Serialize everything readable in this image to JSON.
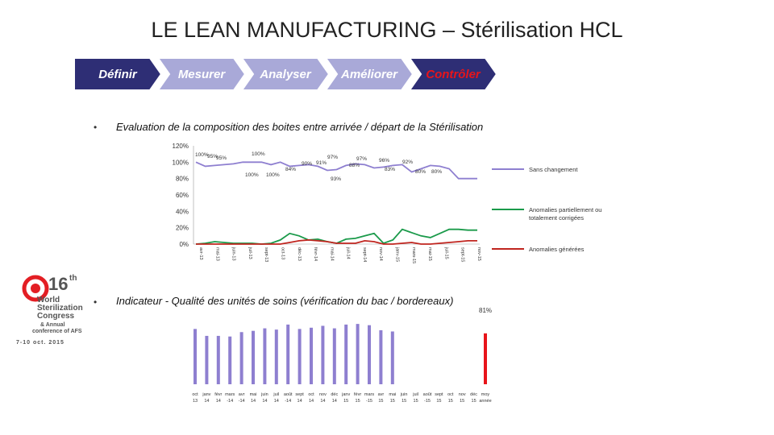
{
  "title": "LE LEAN MANUFACTURING – Stérilisation HCL",
  "steps": [
    "Définir",
    "Mesurer",
    "Analyser",
    "Améliorer",
    "Contrôler"
  ],
  "colors": {
    "step_dark": "#2e2e75",
    "step_light": "#a9a9d8",
    "red": "#e8141a",
    "purple": "#8e7fd0",
    "green": "#1a9a4a",
    "red_line": "#c0251f"
  },
  "section1": {
    "bullet": "•",
    "heading": "Evaluation de la composition des boites entre arrivée / départ de la Stérilisation"
  },
  "section2": {
    "bullet": "•",
    "heading": "Indicateur - Qualité des unités de soins (vérification du bac / bordereaux)"
  },
  "logo": {
    "number": "16",
    "suffix": "th",
    "lines": [
      "World",
      "Sterilization",
      "Congress"
    ],
    "sub": [
      "& Annual",
      "conference of AFS"
    ],
    "dates": "7-10 oct. 2015"
  },
  "chart_data": [
    {
      "type": "line",
      "y_ticks": [
        "120%",
        "100%",
        "80%",
        "60%",
        "40%",
        "20%",
        "0%"
      ],
      "ylim": [
        0,
        120
      ],
      "categories": [
        "avr-13",
        "mai-13",
        "juin-13",
        "juil-13",
        "aout-13",
        "sept-13",
        "oct-13",
        "nov-13",
        "dec-13",
        "janv-14",
        "fevr-14",
        "mars-14",
        "avr-14",
        "mai-14",
        "juin-14",
        "juil-14",
        "aout-14",
        "sept-14",
        "oct-14",
        "nov-14",
        "dec-14",
        "janv-15",
        "fevr-15",
        "mars-15",
        "avr-15",
        "mai-15",
        "juin-15",
        "juil-15",
        "aout-15",
        "sept-15",
        "oct-15"
      ],
      "x_labels": [
        "avr-13",
        "",
        "mai-13",
        "",
        "juin-13",
        "",
        "juil-13",
        "",
        "sept-13",
        "",
        "oct-13",
        "",
        "déc-13",
        "",
        "févr-14",
        "",
        "mai-14",
        "",
        "juil-14",
        "",
        "sept-14",
        "",
        "nov-14",
        "",
        "janv-15",
        "",
        "mars-15",
        "",
        "mai-15",
        "",
        "juil-15",
        "",
        "sept-15",
        "",
        "nov-15"
      ],
      "series": [
        {
          "name": "Sans changement",
          "color": "#8e7fd0",
          "values": [
            100,
            95,
            96,
            97,
            98,
            100,
            100,
            100,
            97,
            100,
            95,
            96,
            97,
            95,
            90,
            91,
            96,
            98,
            97,
            93,
            94,
            96,
            97,
            88,
            92,
            96,
            95,
            92,
            80,
            80,
            80
          ]
        },
        {
          "name": "Anomalies partiellement ou totalement corrigées",
          "color": "#1a9a4a",
          "values": [
            0,
            1,
            3,
            2,
            1,
            1,
            1,
            0,
            1,
            5,
            13,
            10,
            5,
            6,
            3,
            1,
            6,
            7,
            10,
            13,
            1,
            5,
            18,
            14,
            10,
            8,
            13,
            18,
            18,
            17,
            17
          ]
        },
        {
          "name": "Anomalies générées",
          "color": "#c0251f",
          "values": [
            0,
            0,
            0,
            0,
            0,
            0,
            0,
            0,
            0,
            0,
            2,
            4,
            5,
            4,
            3,
            1,
            1,
            1,
            4,
            3,
            0,
            0,
            1,
            2,
            0,
            0,
            1,
            2,
            3,
            4,
            4
          ]
        }
      ],
      "data_labels": [
        "100%",
        "95%",
        "95%",
        "100%",
        "100%",
        "100%",
        "84%",
        "90%",
        "91%",
        "97%",
        "93%",
        "88%",
        "97%",
        "96%",
        "83%",
        "92%",
        "80%",
        "80%"
      ]
    },
    {
      "type": "bar",
      "top_label": "81%",
      "categories": [
        "oct-13",
        "janv-14",
        "févr-14",
        "mars-14",
        "avr-14",
        "mai-14",
        "juin-14",
        "juil-14",
        "août-14",
        "sept-14",
        "oct-14",
        "nov-14",
        "déc-14",
        "janv-15",
        "févr-15",
        "mars-15",
        "avr-15",
        "mai-15",
        "juin-15",
        "juil-15",
        "août-15",
        "sept-15",
        "oct-15",
        "nov-15",
        "déc-15",
        "moy année"
      ],
      "x_label_top": [
        "oct",
        "janv",
        "févr",
        "mars",
        "avr",
        "mai",
        "juin",
        "juil",
        "août",
        "sept",
        "oct",
        "nov",
        "déc",
        "janv",
        "févr",
        "mars",
        "avr",
        "mai",
        "juin",
        "juil",
        "août",
        "sept",
        "oct",
        "nov",
        "déc",
        "moy"
      ],
      "x_label_bottom": [
        "13",
        "14",
        "14",
        "-14",
        "-14",
        "14",
        "14",
        "14",
        "-14",
        "14",
        "14",
        "14",
        "14",
        "15",
        "15",
        "-15",
        "15",
        "15",
        "15",
        "15",
        "-15",
        "15",
        "15",
        "15",
        "15",
        "année"
      ],
      "values": [
        88,
        77,
        77,
        76,
        83,
        85,
        89,
        87,
        95,
        88,
        90,
        93,
        89,
        95,
        96,
        94,
        86,
        84,
        0,
        0,
        0,
        0,
        0,
        0,
        0,
        81
      ],
      "colors": [
        "purple",
        "purple",
        "purple",
        "purple",
        "purple",
        "purple",
        "purple",
        "purple",
        "purple",
        "purple",
        "purple",
        "purple",
        "purple",
        "purple",
        "purple",
        "purple",
        "purple",
        "purple",
        "none",
        "none",
        "none",
        "none",
        "none",
        "none",
        "none",
        "red"
      ]
    }
  ]
}
